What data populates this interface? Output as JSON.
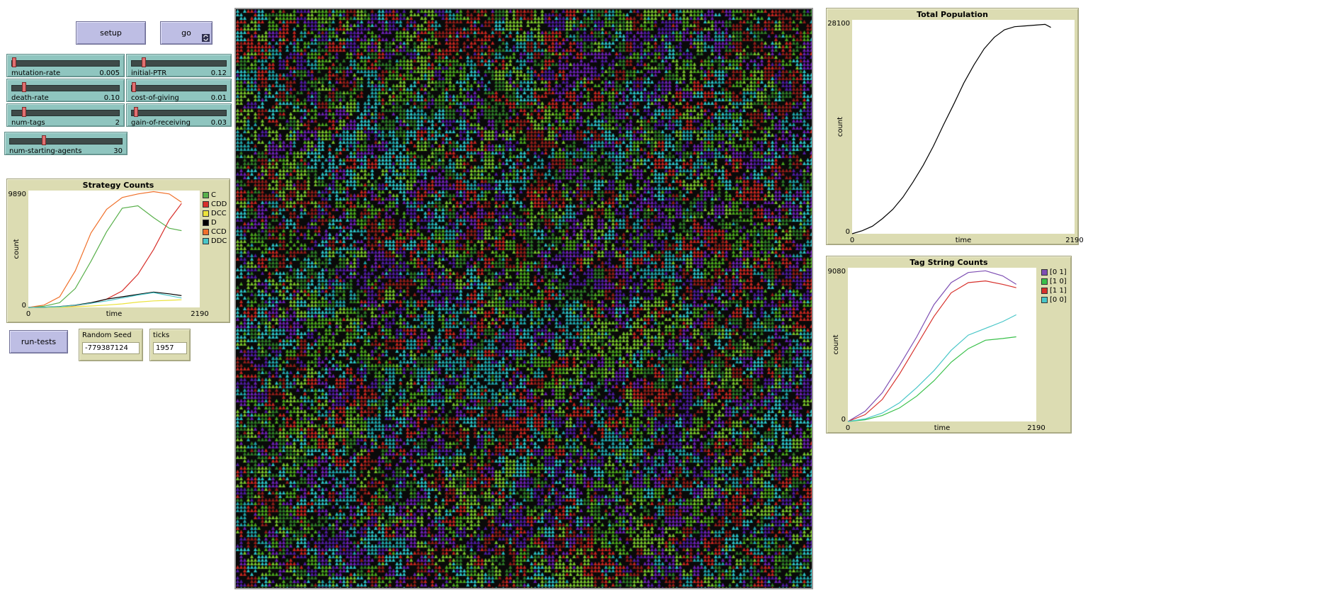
{
  "buttons": {
    "setup": "setup",
    "go": "go",
    "run_tests": "run-tests"
  },
  "sliders": [
    {
      "name": "mutation-rate",
      "value": "0.005",
      "fraction": 0.01
    },
    {
      "name": "initial-PTR",
      "value": "0.12",
      "fraction": 0.12
    },
    {
      "name": "death-rate",
      "value": "0.10",
      "fraction": 0.1
    },
    {
      "name": "cost-of-giving",
      "value": "0.01",
      "fraction": 0.01
    },
    {
      "name": "num-tags",
      "value": "2",
      "fraction": 0.1
    },
    {
      "name": "gain-of-receiving",
      "value": "0.03",
      "fraction": 0.03
    },
    {
      "name": "num-starting-agents",
      "value": "30",
      "fraction": 0.3
    }
  ],
  "monitors": {
    "random_seed": {
      "label": "Random Seed",
      "value": "-779387124"
    },
    "ticks": {
      "label": "ticks",
      "value": "1957"
    }
  },
  "plots": {
    "strategy": {
      "title": "Strategy Counts",
      "xlabel": "time",
      "ylabel": "count",
      "xmin_label": "0",
      "xmax_label": "2190",
      "ymin_label": "0",
      "ymax_label": "9890",
      "legend": [
        {
          "name": "C",
          "color": "#59b04b"
        },
        {
          "name": "CDD",
          "color": "#d7302b"
        },
        {
          "name": "DCC",
          "color": "#ece33b"
        },
        {
          "name": "D",
          "color": "#000000"
        },
        {
          "name": "CCD",
          "color": "#f0702a"
        },
        {
          "name": "DDC",
          "color": "#48c6c8"
        }
      ]
    },
    "population": {
      "title": "Total Population",
      "xlabel": "time",
      "ylabel": "count",
      "xmin_label": "0",
      "xmax_label": "2190",
      "ymin_label": "0",
      "ymax_label": "28100"
    },
    "tags": {
      "title": "Tag String Counts",
      "xlabel": "time",
      "ylabel": "count",
      "xmin_label": "0",
      "xmax_label": "2190",
      "ymin_label": "0",
      "ymax_label": "9080",
      "legend": [
        {
          "name": "[0 1]",
          "color": "#7e4fb3"
        },
        {
          "name": "[1 0]",
          "color": "#39c04a"
        },
        {
          "name": "[1 1]",
          "color": "#d7302b"
        },
        {
          "name": "[0 0]",
          "color": "#48c6c8"
        }
      ]
    }
  },
  "chart_data": [
    {
      "type": "line",
      "title": "Strategy Counts",
      "xlabel": "time",
      "ylabel": "count",
      "xlim": [
        0,
        2190
      ],
      "ylim": [
        0,
        9890
      ],
      "x": [
        0,
        200,
        400,
        600,
        800,
        1000,
        1200,
        1400,
        1600,
        1800,
        1957
      ],
      "series": [
        {
          "name": "C",
          "color": "#59b04b",
          "values": [
            0,
            100,
            400,
            1600,
            3900,
            6400,
            8400,
            8600,
            7600,
            6700,
            6500
          ]
        },
        {
          "name": "CDD",
          "color": "#d7302b",
          "values": [
            0,
            20,
            60,
            150,
            350,
            700,
            1400,
            2800,
            4900,
            7400,
            8800
          ]
        },
        {
          "name": "DCC",
          "color": "#ece33b",
          "values": [
            0,
            5,
            20,
            60,
            120,
            200,
            300,
            450,
            550,
            600,
            650
          ]
        },
        {
          "name": "D",
          "color": "#000000",
          "values": [
            0,
            20,
            80,
            200,
            400,
            700,
            900,
            1100,
            1300,
            1150,
            1000
          ]
        },
        {
          "name": "CCD",
          "color": "#f0702a",
          "values": [
            0,
            200,
            900,
            3100,
            6300,
            8300,
            9300,
            9600,
            9800,
            9600,
            8900
          ]
        },
        {
          "name": "DDC",
          "color": "#48c6c8",
          "values": [
            0,
            15,
            60,
            180,
            350,
            550,
            800,
            1050,
            1250,
            1000,
            800
          ]
        }
      ]
    },
    {
      "type": "line",
      "title": "Total Population",
      "xlabel": "time",
      "ylabel": "count",
      "xlim": [
        0,
        2190
      ],
      "ylim": [
        0,
        28100
      ],
      "x": [
        0,
        100,
        200,
        300,
        400,
        500,
        600,
        700,
        800,
        900,
        1000,
        1100,
        1200,
        1300,
        1400,
        1500,
        1600,
        1700,
        1800,
        1900,
        1957
      ],
      "series": [
        {
          "name": "",
          "color": "#000000",
          "values": [
            0,
            400,
            1000,
            2000,
            3200,
            4800,
            6800,
            9000,
            11500,
            14300,
            17000,
            19800,
            22200,
            24300,
            25800,
            26800,
            27200,
            27300,
            27400,
            27500,
            27100
          ]
        }
      ]
    },
    {
      "type": "line",
      "title": "Tag String Counts",
      "xlabel": "time",
      "ylabel": "count",
      "xlim": [
        0,
        2190
      ],
      "ylim": [
        0,
        9080
      ],
      "x": [
        0,
        200,
        400,
        600,
        800,
        1000,
        1200,
        1400,
        1600,
        1800,
        1957
      ],
      "series": [
        {
          "name": "[0 1]",
          "color": "#7e4fb3",
          "values": [
            0,
            600,
            1700,
            3300,
            5000,
            6900,
            8200,
            8800,
            8900,
            8600,
            8100
          ]
        },
        {
          "name": "[1 0]",
          "color": "#39c04a",
          "values": [
            0,
            100,
            350,
            800,
            1500,
            2400,
            3500,
            4300,
            4800,
            4900,
            5000
          ]
        },
        {
          "name": "[1 1]",
          "color": "#d7302b",
          "values": [
            0,
            400,
            1300,
            2800,
            4500,
            6200,
            7600,
            8200,
            8300,
            8100,
            7900
          ]
        },
        {
          "name": "[0 0]",
          "color": "#48c6c8",
          "values": [
            0,
            150,
            500,
            1100,
            2000,
            3000,
            4200,
            5100,
            5500,
            5900,
            6300
          ]
        }
      ]
    }
  ],
  "world": {
    "background": "#0a0a0a",
    "palette": [
      "#6a1fb0",
      "#4d1a9e",
      "#c2251f",
      "#8e1c18",
      "#1fa3a8",
      "#2ac0c4",
      "#4aa51c",
      "#77c22a",
      "#2d7a26"
    ]
  }
}
